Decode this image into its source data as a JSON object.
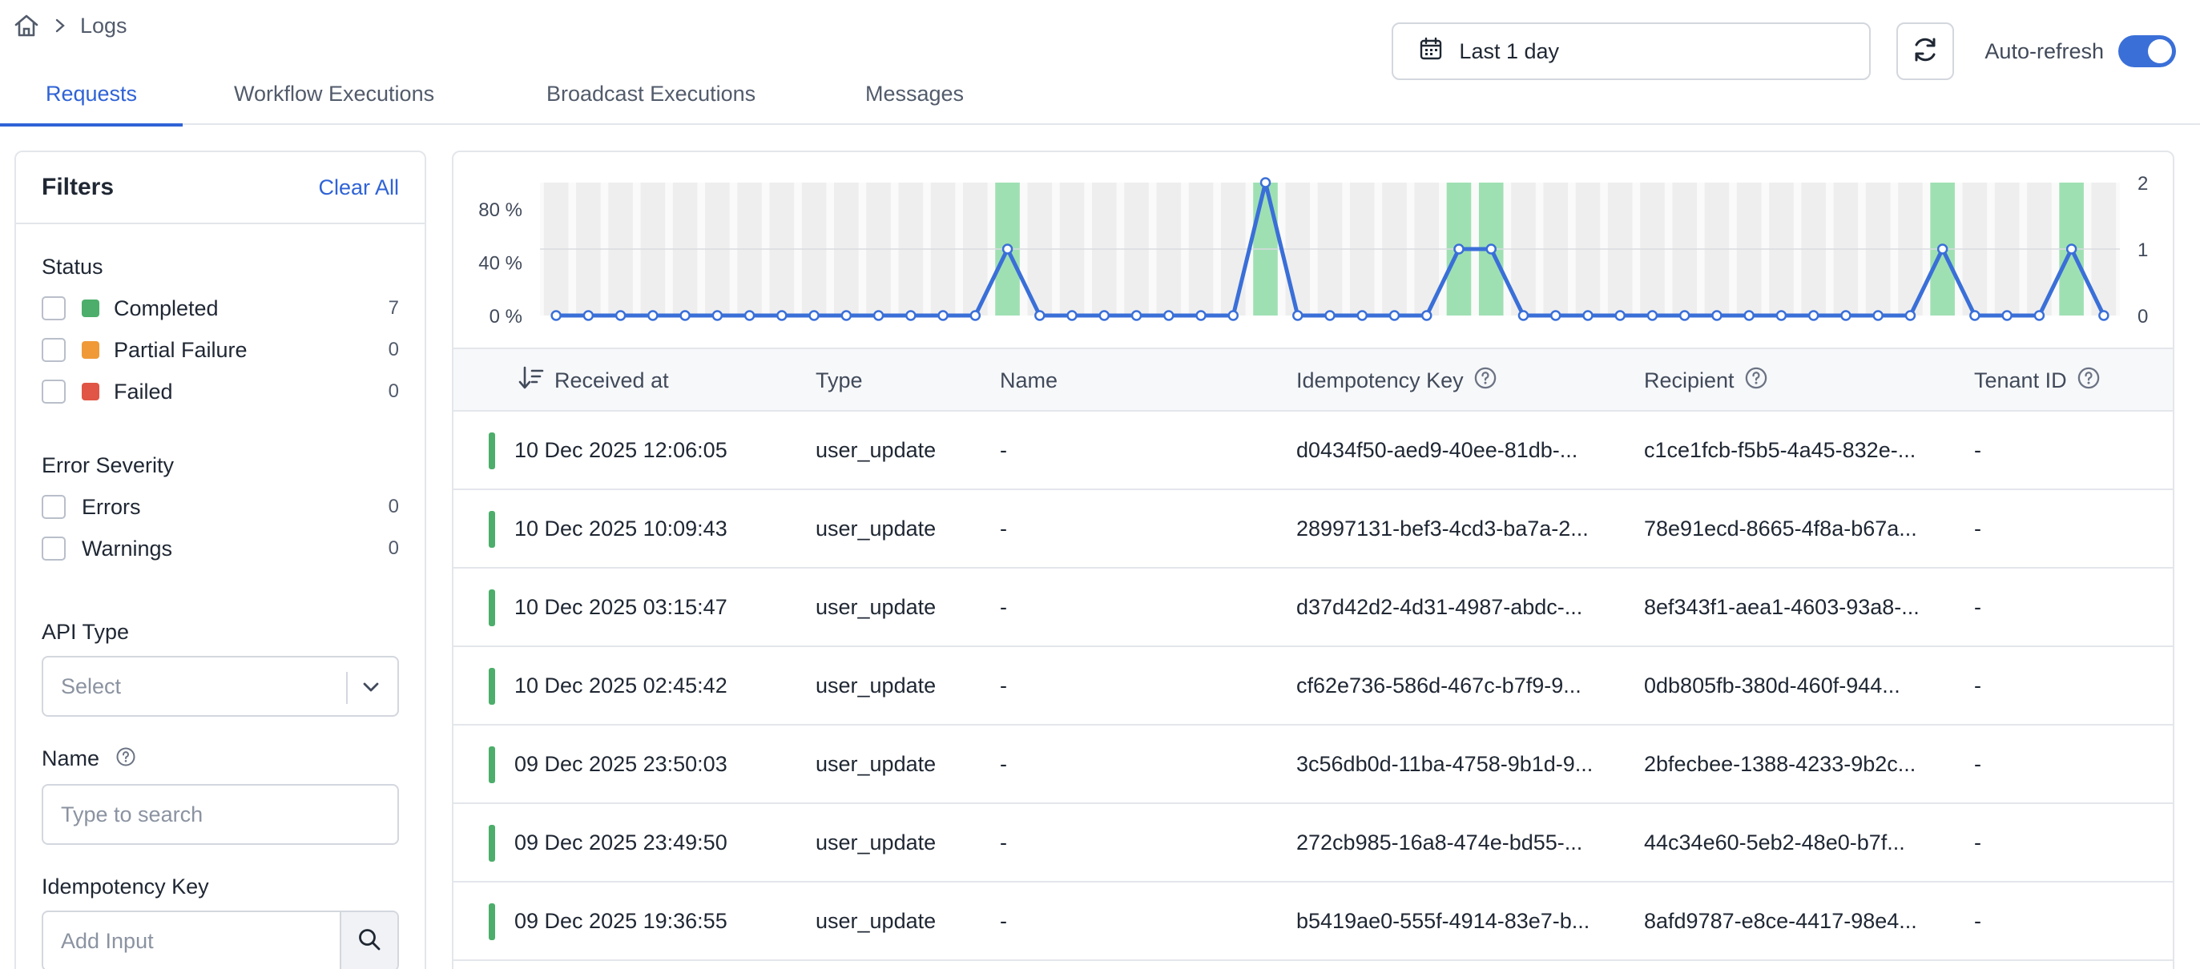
{
  "breadcrumb": {
    "home_icon": "home-icon",
    "current": "Logs"
  },
  "date_range": {
    "label": "Last 1 day",
    "icon": "calendar-icon"
  },
  "refresh": {
    "icon": "refresh-icon"
  },
  "auto_refresh": {
    "label": "Auto-refresh",
    "enabled": true
  },
  "tabs": [
    {
      "label": "Requests",
      "active": true
    },
    {
      "label": "Workflow Executions",
      "active": false
    },
    {
      "label": "Broadcast Executions",
      "active": false
    },
    {
      "label": "Messages",
      "active": false
    }
  ],
  "filters": {
    "title": "Filters",
    "clear_all": "Clear All",
    "status": {
      "heading": "Status",
      "options": [
        {
          "label": "Completed",
          "count": "7",
          "color": "#4cae6a"
        },
        {
          "label": "Partial Failure",
          "count": "0",
          "color": "#ef9a37"
        },
        {
          "label": "Failed",
          "count": "0",
          "color": "#e05545"
        }
      ]
    },
    "error_severity": {
      "heading": "Error Severity",
      "options": [
        {
          "label": "Errors",
          "count": "0"
        },
        {
          "label": "Warnings",
          "count": "0"
        }
      ]
    },
    "api_type": {
      "heading": "API Type",
      "placeholder": "Select"
    },
    "name": {
      "heading": "Name",
      "placeholder": "Type to search"
    },
    "idempotency_key": {
      "heading": "Idempotency Key",
      "placeholder": "Add Input"
    }
  },
  "chart_data": {
    "type": "bar+line",
    "bins": 49,
    "left_axis_ticks": [
      "80 %",
      "40 %",
      "0 %"
    ],
    "right_axis_ticks": [
      "2",
      "1",
      "0"
    ],
    "ylim_right": [
      0,
      2
    ],
    "series": [
      {
        "name": "",
        "type": "line",
        "values": [
          0,
          0,
          0,
          0,
          0,
          0,
          0,
          0,
          0,
          0,
          0,
          0,
          0,
          0,
          1,
          0,
          0,
          0,
          0,
          0,
          0,
          0,
          2,
          0,
          0,
          0,
          0,
          0,
          1,
          1,
          0,
          0,
          0,
          0,
          0,
          0,
          0,
          0,
          0,
          0,
          0,
          0,
          0,
          1,
          0,
          0,
          0,
          1,
          0
        ]
      },
      {
        "name": "",
        "type": "bar",
        "values": [
          0,
          0,
          0,
          0,
          0,
          0,
          0,
          0,
          0,
          0,
          0,
          0,
          0,
          0,
          100,
          0,
          0,
          0,
          0,
          0,
          0,
          0,
          100,
          0,
          0,
          0,
          0,
          0,
          100,
          100,
          0,
          0,
          0,
          0,
          0,
          0,
          0,
          0,
          0,
          0,
          0,
          0,
          0,
          100,
          0,
          0,
          0,
          100,
          0
        ]
      }
    ],
    "colors": {
      "line": "#3a6fd8",
      "bar": "#9fe0b3",
      "background_bar": "#eeeeee"
    }
  },
  "table": {
    "columns": [
      "Received at",
      "Type",
      "Name",
      "Idempotency Key",
      "Recipient",
      "Tenant ID"
    ],
    "rows": [
      {
        "received_at": "10 Dec 2025 12:06:05",
        "type": "user_update",
        "name": "-",
        "idempotency_key": "d0434f50-aed9-40ee-81db-...",
        "recipient": "c1ce1fcb-f5b5-4a45-832e-...",
        "tenant_id": "-"
      },
      {
        "received_at": "10 Dec 2025 10:09:43",
        "type": "user_update",
        "name": "-",
        "idempotency_key": "28997131-bef3-4cd3-ba7a-2...",
        "recipient": "78e91ecd-8665-4f8a-b67a...",
        "tenant_id": "-"
      },
      {
        "received_at": "10 Dec 2025 03:15:47",
        "type": "user_update",
        "name": "-",
        "idempotency_key": "d37d42d2-4d31-4987-abdc-...",
        "recipient": "8ef343f1-aea1-4603-93a8-...",
        "tenant_id": "-"
      },
      {
        "received_at": "10 Dec 2025 02:45:42",
        "type": "user_update",
        "name": "-",
        "idempotency_key": "cf62e736-586d-467c-b7f9-9...",
        "recipient": "0db805fb-380d-460f-944...",
        "tenant_id": "-"
      },
      {
        "received_at": "09 Dec 2025 23:50:03",
        "type": "user_update",
        "name": "-",
        "idempotency_key": "3c56db0d-11ba-4758-9b1d-9...",
        "recipient": "2bfecbee-1388-4233-9b2c...",
        "tenant_id": "-"
      },
      {
        "received_at": "09 Dec 2025 23:49:50",
        "type": "user_update",
        "name": "-",
        "idempotency_key": "272cb985-16a8-474e-bd55-...",
        "recipient": "44c34e60-5eb2-48e0-b7f...",
        "tenant_id": "-"
      },
      {
        "received_at": "09 Dec 2025 19:36:55",
        "type": "user_update",
        "name": "-",
        "idempotency_key": "b5419ae0-555f-4914-83e7-b...",
        "recipient": "8afd9787-e8ce-4417-98e4...",
        "tenant_id": "-"
      }
    ]
  }
}
